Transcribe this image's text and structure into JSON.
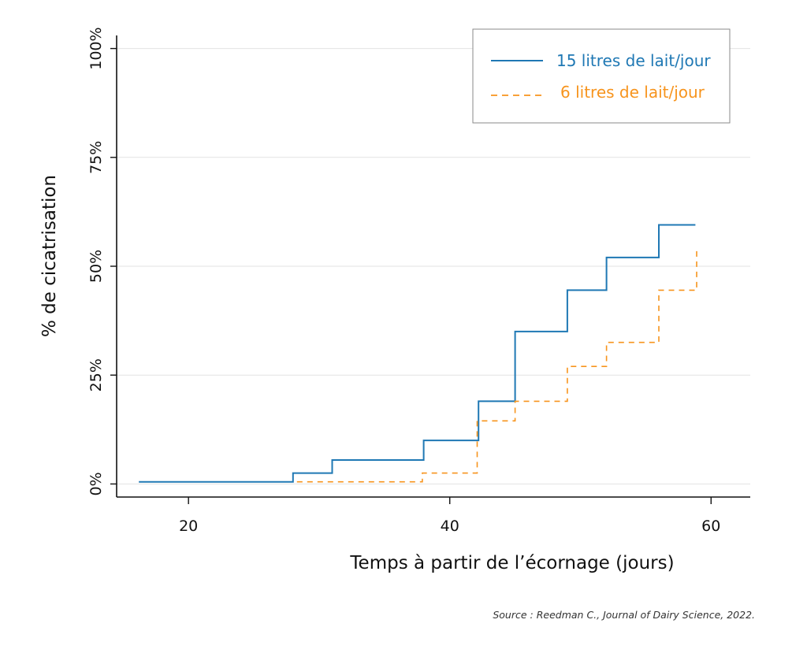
{
  "chart_data": {
    "type": "line",
    "step": true,
    "xlabel": "Temps à partir de l’écornage (jours)",
    "ylabel": "% de cicatrisation",
    "xlim": [
      14.5,
      63
    ],
    "ylim": [
      -3,
      103
    ],
    "x_ticks": [
      20,
      40,
      60
    ],
    "x_tick_labels": [
      "20",
      "40",
      "60"
    ],
    "y_ticks": [
      0,
      25,
      50,
      75,
      100
    ],
    "y_tick_labels": [
      "0%",
      "25%",
      "50%",
      "75%",
      "100%"
    ],
    "grid": "horizontal",
    "legend_position": "top-right",
    "source": "Source : Reedman C., Journal of Dairy Science, 2022.",
    "series": [
      {
        "name": "15 litres de lait/jour",
        "color": "#1f78b4",
        "dash": "solid",
        "points": [
          [
            16.2,
            0.5
          ],
          [
            28,
            0.5
          ],
          [
            28,
            2.5
          ],
          [
            31,
            2.5
          ],
          [
            31,
            5.5
          ],
          [
            38,
            5.5
          ],
          [
            38,
            10
          ],
          [
            42.2,
            10
          ],
          [
            42.2,
            19
          ],
          [
            45,
            19
          ],
          [
            45,
            35
          ],
          [
            49,
            35
          ],
          [
            49,
            44.5
          ],
          [
            52,
            44.5
          ],
          [
            52,
            52
          ],
          [
            56,
            52
          ],
          [
            56,
            59.5
          ],
          [
            58.8,
            59.5
          ]
        ]
      },
      {
        "name": "6 litres de lait/jour",
        "color": "#f7941d",
        "dash": "dashed",
        "points": [
          [
            28.3,
            0.5
          ],
          [
            37.9,
            0.5
          ],
          [
            37.9,
            2.5
          ],
          [
            42.1,
            2.5
          ],
          [
            42.1,
            14.5
          ],
          [
            45,
            14.5
          ],
          [
            45,
            19
          ],
          [
            49,
            19
          ],
          [
            49,
            27
          ],
          [
            52,
            27
          ],
          [
            52,
            32.5
          ],
          [
            56,
            32.5
          ],
          [
            56,
            44.5
          ],
          [
            58.9,
            44.5
          ],
          [
            58.9,
            54
          ]
        ]
      }
    ]
  }
}
